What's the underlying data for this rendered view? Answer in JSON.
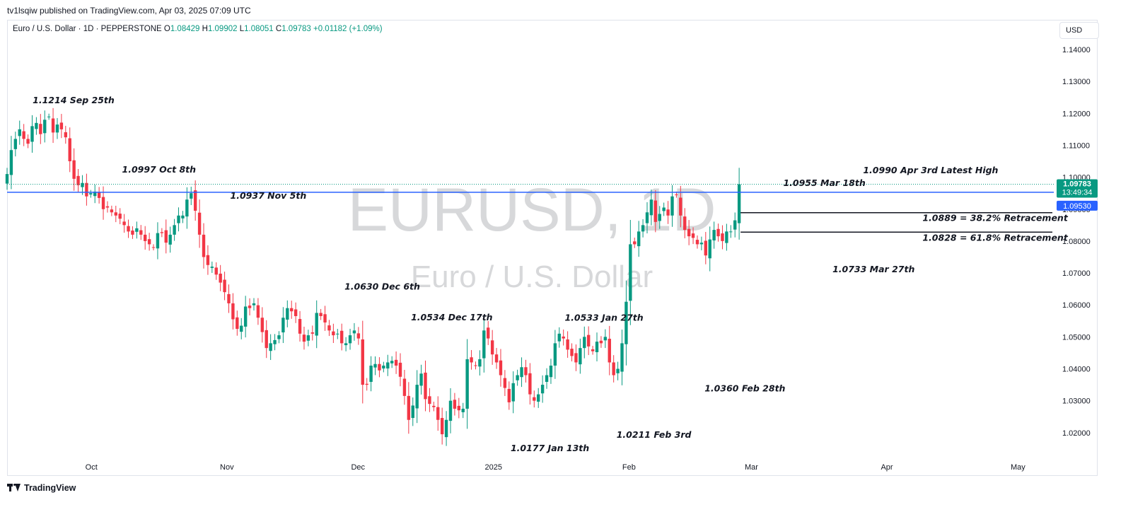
{
  "header": {
    "published_by": "tv1lsqiw published on TradingView.com, Apr 03, 2025 07:09 UTC"
  },
  "legend": {
    "symbol": "Euro / U.S. Dollar · 1D · PEPPERSTONE",
    "open_label": "O",
    "open_value": "1.08429",
    "high_label": "H",
    "high_value": "1.09902",
    "low_label": "L",
    "low_value": "1.08051",
    "close_label": "C",
    "close_value": "1.09783",
    "change": "+0.01182 (+1.09%)"
  },
  "currency_button": "USD",
  "watermark": {
    "ticker": "EURUSD, 1D",
    "name": "Euro / U.S. Dollar"
  },
  "price_badges": {
    "last": "1.09783",
    "countdown": "13:49:34",
    "line_level": "1.09530"
  },
  "footer": {
    "brand": "TradingView"
  },
  "colors": {
    "up": "#089981",
    "down": "#f23645",
    "level_line": "#2962ff",
    "badge_line": "#2962ff"
  },
  "chart_data": {
    "type": "candlestick",
    "y_ticks": [
      "1.14000",
      "1.13000",
      "1.12000",
      "1.11000",
      "1.10000",
      "1.09000",
      "1.08000",
      "1.07000",
      "1.06000",
      "1.05000",
      "1.04000",
      "1.03000",
      "1.02000"
    ],
    "ylim": [
      1.0145,
      1.1495
    ],
    "x_ticks": [
      {
        "label": "Oct",
        "date": "2024-10-01"
      },
      {
        "label": "Nov",
        "date": "2024-11-01"
      },
      {
        "label": "Dec",
        "date": "2024-12-01"
      },
      {
        "label": "2025",
        "date": "2025-01-01"
      },
      {
        "label": "Feb",
        "date": "2025-02-01"
      },
      {
        "label": "Mar",
        "date": "2025-03-01"
      },
      {
        "label": "Apr",
        "date": "2025-04-01"
      },
      {
        "label": "May",
        "date": "2025-05-01"
      }
    ],
    "horizontal_level": 1.0953,
    "annotations": [
      {
        "text": "1.1214 Sep 25th",
        "date": "2024-09-25",
        "price": 1.1214
      },
      {
        "text": "1.0997 Oct 8th",
        "date": "2024-10-08",
        "price": 1.0997
      },
      {
        "text": "1.0937 Nov 5th",
        "date": "2024-11-05",
        "price": 1.0937
      },
      {
        "text": "1.0630 Dec 6th",
        "date": "2024-12-06",
        "price": 1.063
      },
      {
        "text": "1.0534 Dec 17th",
        "date": "2024-12-17",
        "price": 1.0534
      },
      {
        "text": "1.0533 Jan 27th",
        "date": "2025-01-27",
        "price": 1.0533
      },
      {
        "text": "1.0177 Jan 13th",
        "date": "2025-01-13",
        "price": 1.0177
      },
      {
        "text": "1.0211 Feb 3rd",
        "date": "2025-02-03",
        "price": 1.0211
      },
      {
        "text": "1.0360 Feb 28th",
        "date": "2025-02-28",
        "price": 1.036
      },
      {
        "text": "1.0955 Mar 18th",
        "date": "2025-03-18",
        "price": 1.0955
      },
      {
        "text": "1.0990 Apr 3rd Latest High",
        "date": "2025-04-03",
        "price": 1.099
      },
      {
        "text": "1.0733 Mar 27th",
        "date": "2025-03-27",
        "price": 1.0733
      },
      {
        "text": "1.0889 = 38.2% Retracement",
        "date": "2025-04-03",
        "price": 1.0889
      },
      {
        "text": "1.0828 = 61.8% Retracement",
        "date": "2025-04-03",
        "price": 1.0828
      }
    ],
    "retracement_levels": [
      1.0889,
      1.0828
    ],
    "closes": [
      1.101,
      1.1085,
      1.112,
      1.115,
      1.112,
      1.1105,
      1.116,
      1.117,
      1.1135,
      1.118,
      1.119,
      1.114,
      1.1165,
      1.115,
      1.1125,
      1.105,
      1.0995,
      1.0975,
      1.0982,
      1.094,
      1.095,
      1.0955,
      1.0935,
      1.09,
      1.0905,
      1.089,
      1.088,
      1.087,
      1.085,
      1.083,
      1.082,
      1.084,
      1.082,
      1.08,
      1.079,
      1.078,
      1.0825,
      1.0825,
      1.0795,
      1.082,
      1.085,
      1.088,
      1.088,
      1.093,
      1.095,
      1.0895,
      1.082,
      1.075,
      1.0725,
      1.072,
      1.0695,
      1.067,
      1.064,
      1.0605,
      1.0555,
      1.0525,
      1.0535,
      1.0595,
      1.059,
      1.0605,
      1.056,
      1.0515,
      1.0465,
      1.048,
      1.049,
      1.0505,
      1.056,
      1.059,
      1.058,
      1.0565,
      1.051,
      1.0485,
      1.0505,
      1.051,
      1.0575,
      1.0565,
      1.0545,
      1.052,
      1.0505,
      1.051,
      1.048,
      1.048,
      1.0505,
      1.052,
      1.0495,
      1.035,
      1.035,
      1.041,
      1.0415,
      1.0395,
      1.041,
      1.042,
      1.0425,
      1.041,
      1.0375,
      1.0315,
      1.024,
      1.0285,
      1.035,
      1.0385,
      1.0305,
      1.029,
      1.028,
      1.024,
      1.0195,
      1.024,
      1.03,
      1.0275,
      1.027,
      1.0275,
      1.043,
      1.042,
      1.041,
      1.043,
      1.052,
      1.0495,
      1.0445,
      1.042,
      1.038,
      1.034,
      1.0295,
      1.0355,
      1.038,
      1.0405,
      1.038,
      1.032,
      1.03,
      1.032,
      1.035,
      1.038,
      1.041,
      1.048,
      1.051,
      1.0495,
      1.046,
      1.044,
      1.042,
      1.0465,
      1.05,
      1.047,
      1.0455,
      1.0485,
      1.048,
      1.05,
      1.042,
      1.038,
      1.04,
      1.048,
      1.061,
      1.079,
      1.079,
      1.083,
      1.085,
      1.089,
      1.093,
      1.086,
      1.0885,
      1.0905,
      1.088,
      1.094,
      1.0945,
      1.088,
      1.0835,
      1.0815,
      1.081,
      1.079,
      1.0795,
      1.0755,
      1.0805,
      1.0835,
      1.0815,
      1.08,
      1.083,
      1.083,
      1.0865,
      1.0978
    ]
  }
}
